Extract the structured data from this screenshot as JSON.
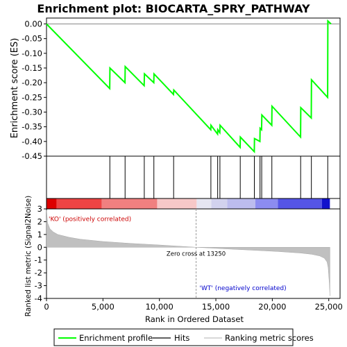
{
  "chart_data": {
    "type": "line",
    "title": "Enrichment plot: BIOCARTA_SPRY_PATHWAY",
    "es_panel": {
      "ylabel": "Enrichment score (ES)",
      "ylim": [
        -0.45,
        0.02
      ],
      "y_ticks": [
        "0.00",
        "-0.05",
        "-0.10",
        "-0.15",
        "-0.20",
        "-0.25",
        "-0.30",
        "-0.35",
        "-0.40",
        "-0.45"
      ],
      "y_tick_values": [
        0.0,
        -0.05,
        -0.1,
        -0.15,
        -0.2,
        -0.25,
        -0.3,
        -0.35,
        -0.4,
        -0.45
      ],
      "series": [
        {
          "name": "Enrichment profile",
          "color": "#00ff00",
          "x": [
            0,
            5600,
            5620,
            6950,
            6970,
            8650,
            8670,
            9500,
            9520,
            11250,
            11270,
            14550,
            14570,
            15150,
            15170,
            15350,
            15370,
            17150,
            17170,
            18400,
            18420,
            18900,
            18920,
            19050,
            19070,
            19950,
            19970,
            22500,
            22520,
            23450,
            23470,
            24900,
            24920,
            25200
          ],
          "y": [
            0.0,
            -0.22,
            -0.15,
            -0.2,
            -0.145,
            -0.21,
            -0.17,
            -0.2,
            -0.17,
            -0.24,
            -0.225,
            -0.36,
            -0.345,
            -0.375,
            -0.36,
            -0.37,
            -0.345,
            -0.42,
            -0.385,
            -0.435,
            -0.39,
            -0.4,
            -0.355,
            -0.36,
            -0.31,
            -0.345,
            -0.28,
            -0.385,
            -0.285,
            -0.32,
            -0.19,
            -0.25,
            0.01,
            0.0
          ]
        }
      ]
    },
    "hits": {
      "label": "Hits",
      "color": "#000000",
      "x": [
        5610,
        6960,
        8660,
        9510,
        11260,
        14560,
        15160,
        15360,
        17160,
        18410,
        18910,
        19060,
        19960,
        22510,
        23460,
        24910
      ]
    },
    "rank_metric_panel": {
      "ylabel": "Ranked list metric (Signal2Noise)",
      "xlabel": "Rank in Ordered Dataset",
      "ylim": [
        -4,
        3
      ],
      "y_ticks": [
        "3",
        "2",
        "1",
        "0",
        "-1",
        "-2",
        "-3",
        "-4"
      ],
      "y_tick_values": [
        3,
        2,
        1,
        0,
        -1,
        -2,
        -3,
        -4
      ],
      "xlim": [
        0,
        26000
      ],
      "x_ticks": [
        "0",
        "5,000",
        "10,000",
        "15,000",
        "20,000",
        "25,000"
      ],
      "x_tick_values": [
        0,
        5000,
        10000,
        15000,
        20000,
        25000
      ],
      "profile_color": "#c0c0c0",
      "profile": {
        "x": [
          0,
          100,
          300,
          600,
          1000,
          2000,
          3000,
          5000,
          7500,
          10000,
          13250,
          16000,
          18500,
          20500,
          22500,
          23500,
          24200,
          24600,
          24850,
          24950,
          25050,
          25100
        ],
        "y": [
          2.9,
          1.9,
          1.45,
          1.2,
          1.0,
          0.78,
          0.63,
          0.45,
          0.3,
          0.18,
          0.0,
          -0.13,
          -0.24,
          -0.33,
          -0.45,
          -0.55,
          -0.68,
          -0.85,
          -1.15,
          -1.6,
          -2.8,
          -3.8
        ]
      },
      "zero_cross_label": "Zero cross at 13250",
      "zero_cross_x": 13250,
      "ko_label": "'KO' (positively correlated)",
      "wt_label": "'WT' (negatively correlated)",
      "ko_color": "#cc0000",
      "wt_color": "#0000cc"
    },
    "color_bar": {
      "segments": [
        {
          "x0": 0,
          "x1": 900,
          "color": "#dd0000"
        },
        {
          "x0": 900,
          "x1": 4900,
          "color": "#ee4444"
        },
        {
          "x0": 4900,
          "x1": 9800,
          "color": "#f08080"
        },
        {
          "x0": 9800,
          "x1": 13300,
          "color": "#f7c8c8"
        },
        {
          "x0": 13300,
          "x1": 14600,
          "color": "#e6e6f2"
        },
        {
          "x0": 14600,
          "x1": 16000,
          "color": "#d2d2ee"
        },
        {
          "x0": 16000,
          "x1": 18500,
          "color": "#bcbcee"
        },
        {
          "x0": 18500,
          "x1": 20500,
          "color": "#8c8cf0"
        },
        {
          "x0": 20500,
          "x1": 24400,
          "color": "#5555e6"
        },
        {
          "x0": 24400,
          "x1": 25100,
          "color": "#1111cc"
        }
      ]
    },
    "legend": {
      "placement": "bottom",
      "entries": [
        {
          "label": "Enrichment profile",
          "color": "#00ff00"
        },
        {
          "label": "Hits",
          "color": "#000000"
        },
        {
          "label": "Ranking metric scores",
          "color": "#c0c0c0"
        }
      ]
    }
  }
}
